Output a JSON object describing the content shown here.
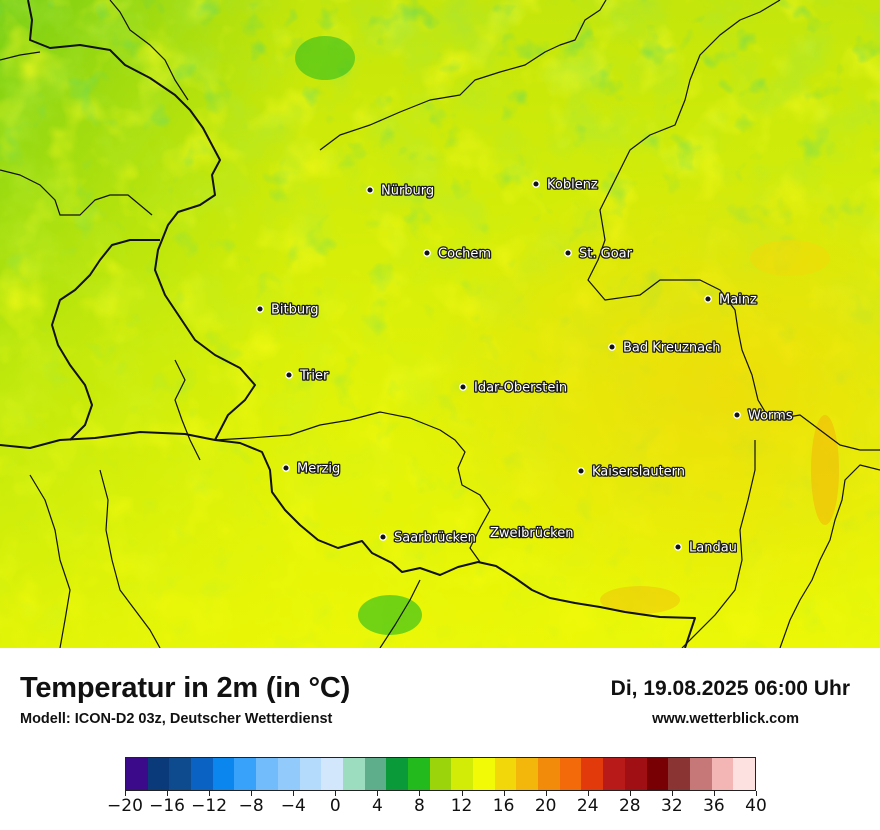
{
  "map": {
    "cities": [
      {
        "name": "Nürburg"
      },
      {
        "name": "Koblenz"
      },
      {
        "name": "Cochem"
      },
      {
        "name": "St. Goar"
      },
      {
        "name": "Mainz"
      },
      {
        "name": "Bitburg"
      },
      {
        "name": "Bad Kreuznach"
      },
      {
        "name": "Trier"
      },
      {
        "name": "Idar-Oberstein"
      },
      {
        "name": "Worms"
      },
      {
        "name": "Merzig"
      },
      {
        "name": "Kaiserslautern"
      },
      {
        "name": "Saarbrücken"
      },
      {
        "name": "Zweibrücken"
      },
      {
        "name": "Landau"
      }
    ]
  },
  "footer": {
    "title": "Temperatur in 2m (in °C)",
    "subtitle": "Modell: ICON-D2 03z, Deutscher Wetterdienst",
    "datetime": "Di, 19.08.2025 06:00 Uhr",
    "website": "www.wetterblick.com"
  },
  "legend": {
    "colors": [
      "#3b0a8a",
      "#0a3a7a",
      "#0d4a8e",
      "#0a62c2",
      "#0a86ee",
      "#38a2fa",
      "#72bcfc",
      "#93cafc",
      "#b5dbfc",
      "#d2e7fc",
      "#9cdcbf",
      "#5fae8b",
      "#0a9a3a",
      "#22ba1d",
      "#9bd40a",
      "#d2ec07",
      "#f2fa05",
      "#f2d80a",
      "#f2b70a",
      "#f28a0a",
      "#f26a0a",
      "#e23a0a",
      "#b81a1a",
      "#a00f14",
      "#780005",
      "#8a3434",
      "#c67878",
      "#f4b6b4",
      "#fde0e0"
    ],
    "tick_labels": [
      "−20",
      "−16",
      "−12",
      "−8",
      "−4",
      "0",
      "4",
      "8",
      "12",
      "16",
      "20",
      "24",
      "28",
      "32",
      "36",
      "40"
    ]
  }
}
